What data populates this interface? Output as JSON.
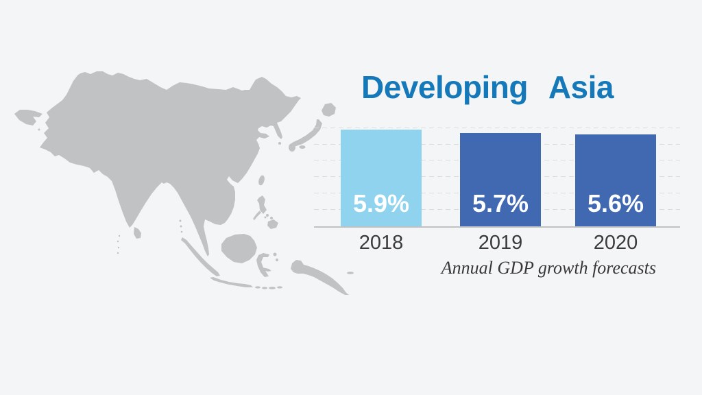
{
  "title": "Developing Asia",
  "caption": "Annual GDP growth forecasts",
  "map": {
    "icon": "asia-map-silhouette",
    "region_depicted": "Asia"
  },
  "colors": {
    "background": "#f4f5f7",
    "map": "#c1c2c4",
    "title": "#1578b8",
    "bar_highlight": "#90d3ee",
    "bar_default": "#4069b1",
    "bar_label": "#ffffff",
    "axis_label": "#3b3b3d",
    "gridline": "#dbdcde",
    "baseline": "#c0c1c3",
    "caption": "#37373a"
  },
  "chart_data": {
    "type": "bar",
    "title": "Developing Asia",
    "caption": "Annual GDP growth forecasts",
    "categories": [
      "2018",
      "2019",
      "2020"
    ],
    "values": [
      5.9,
      5.7,
      5.6
    ],
    "value_labels": [
      "5.9%",
      "5.7%",
      "5.6%"
    ],
    "bar_colors": [
      "#90d3ee",
      "#4069b1",
      "#4069b1"
    ],
    "xlabel": "",
    "ylabel": "",
    "unit": "%",
    "ylim": [
      0,
      6.8
    ],
    "gridlines": {
      "style": "dashed",
      "step": 1,
      "min": 1,
      "max": 6
    },
    "legend": "none",
    "value_label_position": "inside-bottom"
  }
}
